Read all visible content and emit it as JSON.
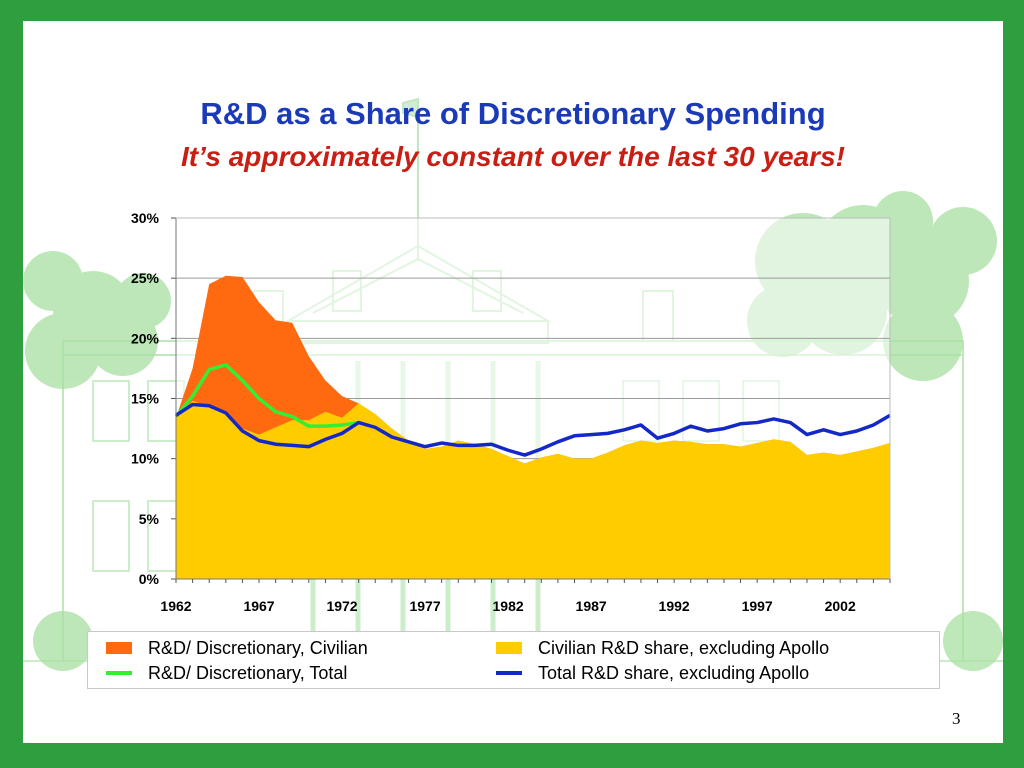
{
  "slide": {
    "title": "R&D as a Share of Discretionary Spending",
    "subtitle": "It’s approximately constant over the last 30 years!",
    "page_number": "3",
    "background_color": "#2e9e3e",
    "watermark": "light green sketch of the White House"
  },
  "chart_data": {
    "type": "area",
    "title": "R&D as a Share of Discretionary Spending",
    "xlabel": "",
    "ylabel": "",
    "x_tick_labels": [
      "1962",
      "1967",
      "1972",
      "1977",
      "1982",
      "1987",
      "1992",
      "1997",
      "2002"
    ],
    "y_tick_labels": [
      "0%",
      "5%",
      "10%",
      "15%",
      "20%",
      "25%",
      "30%"
    ],
    "xlim": [
      1962,
      2005
    ],
    "ylim": [
      0,
      30
    ],
    "grid": "horizontal",
    "legend_position": "bottom",
    "x": [
      1962,
      1963,
      1964,
      1965,
      1966,
      1967,
      1968,
      1969,
      1970,
      1971,
      1972,
      1973,
      1974,
      1975,
      1976,
      1977,
      1978,
      1979,
      1980,
      1981,
      1982,
      1983,
      1984,
      1985,
      1986,
      1987,
      1988,
      1989,
      1990,
      1991,
      1992,
      1993,
      1994,
      1995,
      1996,
      1997,
      1998,
      1999,
      2000,
      2001,
      2002,
      2003,
      2004,
      2005
    ],
    "series": [
      {
        "name": "R&D/ Discretionary, Civilian",
        "kind": "area",
        "color": "#ff6a10",
        "values": [
          13.4,
          17.5,
          24.5,
          25.2,
          25.1,
          23.0,
          21.5,
          21.3,
          18.5,
          16.5,
          15.2,
          14.6,
          13.7,
          12.5,
          11.5,
          10.8,
          11.0,
          11.5,
          11.2,
          10.8,
          10.2,
          9.6,
          10.1,
          10.4,
          10.0,
          10.0,
          10.5,
          11.1,
          11.5,
          11.3,
          11.5,
          11.4,
          11.2,
          11.2,
          11.0,
          11.3,
          11.6,
          11.4,
          10.3,
          10.5,
          10.3,
          10.6,
          10.9,
          11.3
        ]
      },
      {
        "name": "Civilian R&D share, excluding Apollo",
        "kind": "area",
        "color": "#ffcc00",
        "values": [
          13.4,
          14.8,
          14.3,
          13.7,
          12.5,
          12.0,
          12.6,
          13.2,
          13.2,
          13.9,
          13.4,
          14.6,
          13.7,
          12.5,
          11.5,
          10.8,
          11.0,
          11.5,
          11.2,
          10.8,
          10.2,
          9.6,
          10.1,
          10.4,
          10.0,
          10.0,
          10.5,
          11.1,
          11.5,
          11.3,
          11.5,
          11.4,
          11.2,
          11.2,
          11.0,
          11.3,
          11.6,
          11.4,
          10.3,
          10.5,
          10.3,
          10.6,
          10.9,
          11.3
        ]
      },
      {
        "name": "R&D/ Discretionary, Total",
        "kind": "line",
        "color": "#33ee33",
        "values": [
          13.5,
          15.2,
          17.4,
          17.8,
          16.5,
          15.0,
          13.9,
          13.5,
          12.7,
          12.7,
          12.8,
          13.0,
          null,
          null,
          null,
          null,
          null,
          null,
          null,
          null,
          null,
          null,
          null,
          null,
          null,
          null,
          null,
          null,
          null,
          null,
          null,
          null,
          null,
          null,
          null,
          null,
          null,
          null,
          null,
          null,
          null,
          null,
          null,
          null
        ]
      },
      {
        "name": "Total R&D share, excluding Apollo",
        "kind": "line",
        "color": "#1428c8",
        "values": [
          13.6,
          14.5,
          14.4,
          13.8,
          12.3,
          11.5,
          11.2,
          11.1,
          11.0,
          11.6,
          12.1,
          13.0,
          12.6,
          11.8,
          11.4,
          11.0,
          11.3,
          11.1,
          11.1,
          11.2,
          10.7,
          10.3,
          10.8,
          11.4,
          11.9,
          12.0,
          12.1,
          12.4,
          12.8,
          11.7,
          12.1,
          12.7,
          12.3,
          12.5,
          12.9,
          13.0,
          13.3,
          13.0,
          12.0,
          12.4,
          12.0,
          12.3,
          12.8,
          13.6
        ]
      }
    ]
  }
}
